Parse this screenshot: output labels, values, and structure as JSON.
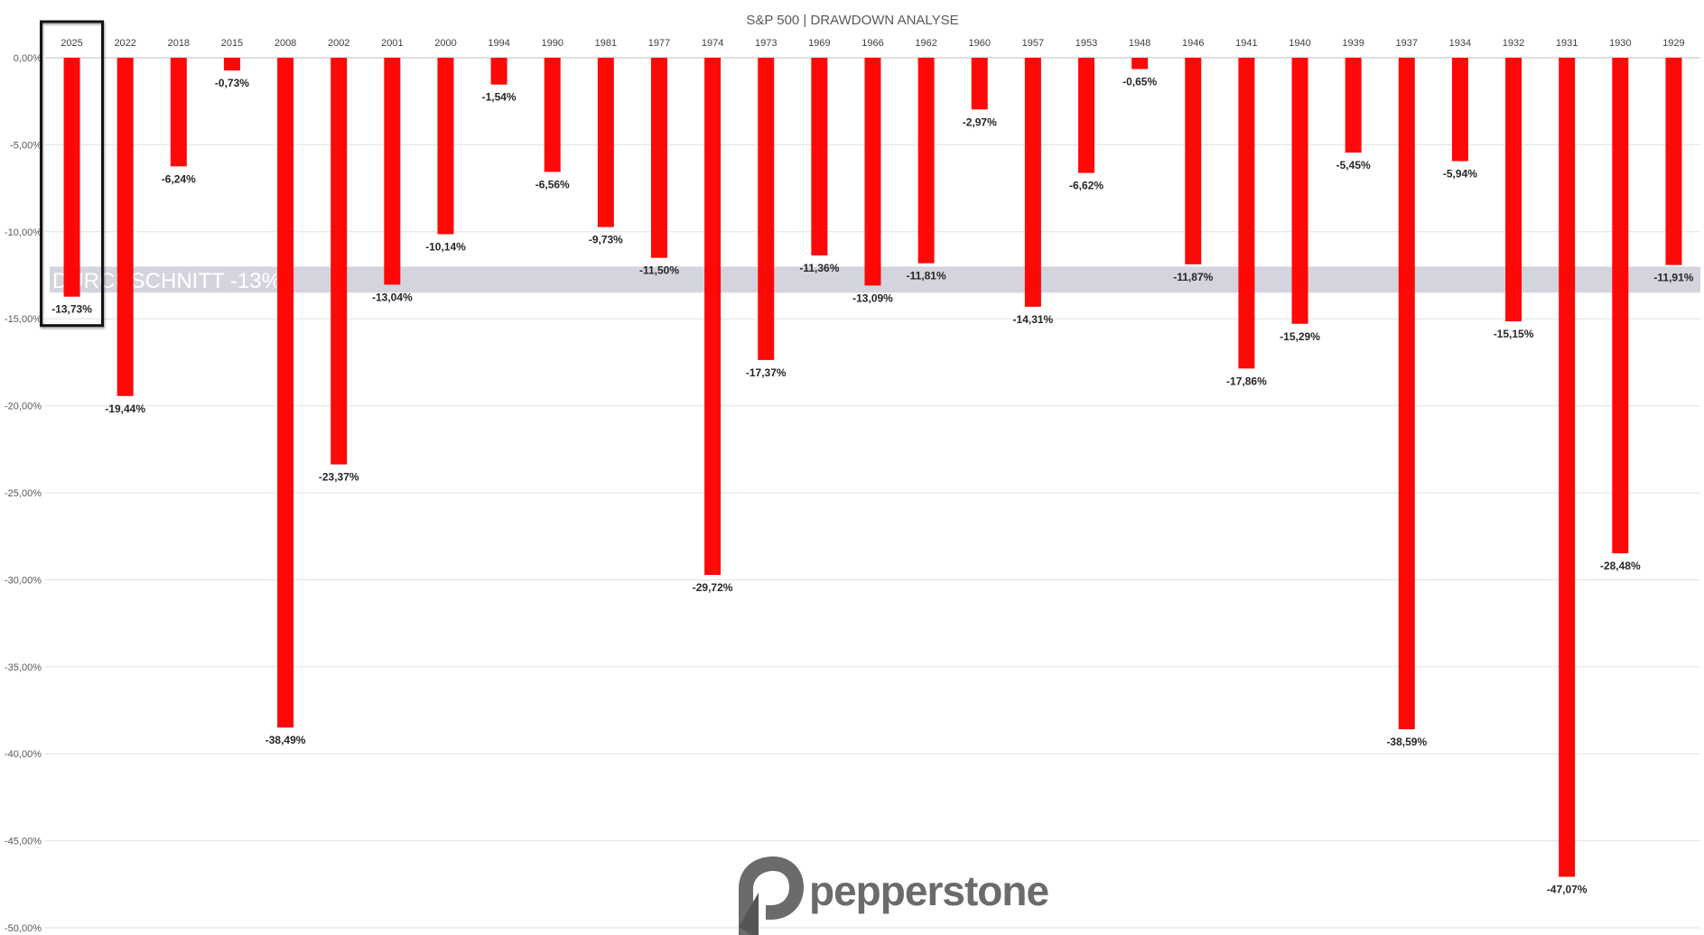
{
  "chart_data": {
    "type": "bar",
    "title": "S&P 500 | DRAWDOWN ANALYSE",
    "xlabel": "",
    "ylabel": "",
    "ylim": [
      -50,
      0
    ],
    "yticks": [
      "0,00%",
      "-5,00%",
      "-10,00%",
      "-15,00%",
      "-20,00%",
      "-25,00%",
      "-30,00%",
      "-35,00%",
      "-40,00%",
      "-45,00%",
      "-50,00%"
    ],
    "grid": true,
    "x_axis_position": "top",
    "categories": [
      "2025",
      "2022",
      "2018",
      "2015",
      "2008",
      "2002",
      "2001",
      "2000",
      "1994",
      "1990",
      "1981",
      "1977",
      "1974",
      "1973",
      "1969",
      "1966",
      "1962",
      "1960",
      "1957",
      "1953",
      "1948",
      "1946",
      "1941",
      "1940",
      "1939",
      "1937",
      "1934",
      "1932",
      "1931",
      "1930",
      "1929"
    ],
    "values": [
      -13.73,
      -19.44,
      -6.24,
      -0.73,
      -38.49,
      -23.37,
      -13.04,
      -10.14,
      -1.54,
      -6.56,
      -9.73,
      -11.5,
      -29.72,
      -17.37,
      -11.36,
      -13.09,
      -11.81,
      -2.97,
      -14.31,
      -6.62,
      -0.65,
      -11.87,
      -17.86,
      -15.29,
      -5.45,
      -38.59,
      -5.94,
      -15.15,
      -47.07,
      -28.48,
      -11.91
    ],
    "data_labels": [
      "-13,73%",
      "-19,44%",
      "-6,24%",
      "-0,73%",
      "-38,49%",
      "-23,37%",
      "-13,04%",
      "-10,14%",
      "-1,54%",
      "-6,56%",
      "-9,73%",
      "-11,50%",
      "-29,72%",
      "-17,37%",
      "-11,36%",
      "-13,09%",
      "-11,81%",
      "-2,97%",
      "-14,31%",
      "-6,62%",
      "-0,65%",
      "-11,87%",
      "-17,86%",
      "-15,29%",
      "-5,45%",
      "-38,59%",
      "-5,94%",
      "-15,15%",
      "-47,07%",
      "-28,48%",
      "-11,91%"
    ],
    "bar_color": "#ff0000",
    "average": {
      "label": "DURCHSCHNITT -13%",
      "band_range": [
        -12,
        -13.5
      ],
      "color": "#d4d4de"
    },
    "highlight": {
      "category": "2025",
      "style": "black outlined box"
    }
  },
  "watermark": {
    "brand": "pepperstone",
    "color": "#6b6b6b"
  }
}
